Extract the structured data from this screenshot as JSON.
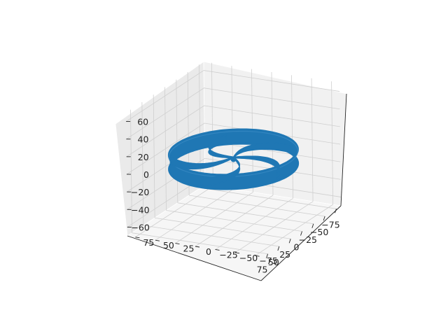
{
  "chart_data": {
    "type": "surface3d",
    "title": "",
    "series_color": "#1f77b4",
    "pane_colors": {
      "left": "#eaeaea",
      "right": "#f1f1f1",
      "floor": "#f6f6f6"
    },
    "x_axis": {
      "ticks": [
        -75,
        -50,
        -25,
        0,
        25,
        50,
        75
      ],
      "labels": [
        "−75",
        "−50",
        "−25",
        "0",
        "25",
        "50",
        "75"
      ]
    },
    "y_axis": {
      "ticks": [
        -75,
        -50,
        -25,
        0,
        25,
        50,
        75
      ],
      "labels": [
        "−75",
        "−50",
        "−25",
        "0",
        "25",
        "50",
        "75"
      ]
    },
    "z_axis": {
      "ticks": [
        -60,
        -40,
        -20,
        0,
        20,
        40,
        60
      ],
      "labels": [
        "−60",
        "−40",
        "−20",
        "0",
        "20",
        "40",
        "60"
      ]
    },
    "shape": {
      "description": "wheel: outer ring band with five curved spokes",
      "ring_radius": 70,
      "ring_band_height": 16,
      "spoke_count": 5
    }
  }
}
